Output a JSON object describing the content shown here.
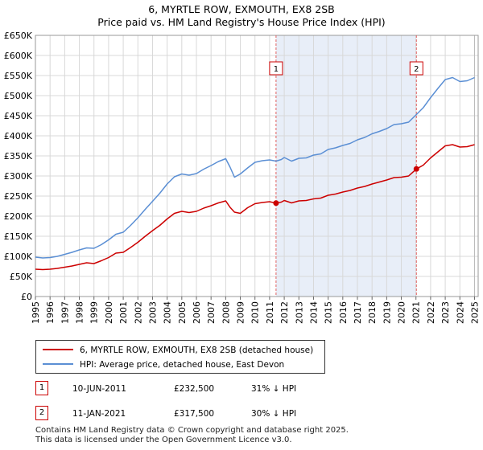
{
  "header": {
    "title": "6, MYRTLE ROW, EXMOUTH, EX8 2SB",
    "subtitle": "Price paid vs. HM Land Registry's House Price Index (HPI)"
  },
  "colors": {
    "property": "#cc0000",
    "hpi": "#5b8fd4",
    "shade": "#e8eef8",
    "marker_line": "#e06060"
  },
  "chart_data": {
    "type": "line",
    "title": "6, MYRTLE ROW, EXMOUTH, EX8 2SB",
    "subtitle": "Price paid vs. HM Land Registry's House Price Index (HPI)",
    "xlabel": "",
    "ylabel": "",
    "xlim": [
      1995,
      2025.25
    ],
    "ylim": [
      0,
      650000
    ],
    "x_ticks": [
      "1995",
      "1996",
      "1997",
      "1998",
      "1999",
      "2000",
      "2001",
      "2002",
      "2003",
      "2004",
      "2005",
      "2006",
      "2007",
      "2008",
      "2009",
      "2010",
      "2011",
      "2012",
      "2013",
      "2014",
      "2015",
      "2016",
      "2017",
      "2018",
      "2019",
      "2020",
      "2021",
      "2022",
      "2023",
      "2024",
      "2025"
    ],
    "y_ticks": [
      {
        "value": 0,
        "label": "£0"
      },
      {
        "value": 50000,
        "label": "£50K"
      },
      {
        "value": 100000,
        "label": "£100K"
      },
      {
        "value": 150000,
        "label": "£150K"
      },
      {
        "value": 200000,
        "label": "£200K"
      },
      {
        "value": 250000,
        "label": "£250K"
      },
      {
        "value": 300000,
        "label": "£300K"
      },
      {
        "value": 350000,
        "label": "£350K"
      },
      {
        "value": 400000,
        "label": "£400K"
      },
      {
        "value": 450000,
        "label": "£450K"
      },
      {
        "value": 500000,
        "label": "£500K"
      },
      {
        "value": 550000,
        "label": "£550K"
      },
      {
        "value": 600000,
        "label": "£600K"
      },
      {
        "value": 650000,
        "label": "£650K"
      }
    ],
    "grid": true,
    "shaded_period": [
      2011.44,
      2021.03
    ],
    "series": [
      {
        "name": "6, MYRTLE ROW, EXMOUTH, EX8 2SB (detached house)",
        "x": [
          1995,
          1995.5,
          1996,
          1996.5,
          1997,
          1997.5,
          1998,
          1998.5,
          1999,
          1999.5,
          2000,
          2000.5,
          2001,
          2001.5,
          2002,
          2002.5,
          2003,
          2003.5,
          2004,
          2004.5,
          2005,
          2005.5,
          2006,
          2006.5,
          2007,
          2007.5,
          2008,
          2008.3,
          2008.6,
          2009,
          2009.5,
          2010,
          2010.5,
          2011,
          2011.44,
          2011.8,
          2012,
          2012.5,
          2013,
          2013.5,
          2014,
          2014.5,
          2015,
          2015.5,
          2016,
          2016.5,
          2017,
          2017.5,
          2018,
          2018.5,
          2019,
          2019.5,
          2020,
          2020.5,
          2021.03,
          2021.5,
          2022,
          2022.5,
          2023,
          2023.5,
          2024,
          2024.5,
          2025
        ],
        "values": [
          68000,
          67000,
          68000,
          70000,
          73000,
          76000,
          80000,
          84000,
          82000,
          89000,
          97000,
          108000,
          110000,
          122000,
          135000,
          150000,
          164000,
          177000,
          193000,
          207000,
          212000,
          209000,
          212000,
          220000,
          226000,
          233000,
          238000,
          222000,
          210000,
          207000,
          221000,
          231000,
          234000,
          236000,
          232500,
          235000,
          239000,
          233000,
          238000,
          239000,
          243000,
          245000,
          252000,
          255000,
          260000,
          264000,
          270000,
          274000,
          280000,
          285000,
          290000,
          296000,
          297000,
          300000,
          317500,
          327000,
          345000,
          360000,
          375000,
          378000,
          372000,
          373000,
          378000
        ]
      },
      {
        "name": "HPI: Average price, detached house, East Devon",
        "x": [
          1995,
          1995.5,
          1996,
          1996.5,
          1997,
          1997.5,
          1998,
          1998.5,
          1999,
          1999.5,
          2000,
          2000.5,
          2001,
          2001.5,
          2002,
          2002.5,
          2003,
          2003.5,
          2004,
          2004.5,
          2005,
          2005.5,
          2006,
          2006.5,
          2007,
          2007.5,
          2008,
          2008.3,
          2008.6,
          2009,
          2009.5,
          2010,
          2010.5,
          2011,
          2011.44,
          2011.8,
          2012,
          2012.5,
          2013,
          2013.5,
          2014,
          2014.5,
          2015,
          2015.5,
          2016,
          2016.5,
          2017,
          2017.5,
          2018,
          2018.5,
          2019,
          2019.5,
          2020,
          2020.5,
          2021.03,
          2021.5,
          2022,
          2022.5,
          2023,
          2023.5,
          2024,
          2024.5,
          2025
        ],
        "values": [
          98000,
          96000,
          97000,
          100000,
          105000,
          110000,
          116000,
          121000,
          120000,
          129000,
          141000,
          155000,
          160000,
          177000,
          196000,
          217000,
          237000,
          257000,
          280000,
          298000,
          305000,
          302000,
          306000,
          317000,
          326000,
          336000,
          343000,
          322000,
          297000,
          305000,
          320000,
          334000,
          338000,
          340000,
          337000,
          341000,
          346000,
          337000,
          344000,
          345000,
          352000,
          355000,
          366000,
          370000,
          376000,
          381000,
          390000,
          396000,
          405000,
          411000,
          418000,
          428000,
          430000,
          434000,
          453000,
          470000,
          495000,
          518000,
          540000,
          545000,
          535000,
          537000,
          545000
        ]
      }
    ],
    "annotations": [
      {
        "label": "1",
        "x": 2011.44,
        "value": 232500
      },
      {
        "label": "2",
        "x": 2021.03,
        "value": 317500
      }
    ]
  },
  "legend": {
    "property": "6, MYRTLE ROW, EXMOUTH, EX8 2SB (detached house)",
    "hpi": "HPI: Average price, detached house, East Devon"
  },
  "transactions": [
    {
      "num": "1",
      "date": "10-JUN-2011",
      "price": "£232,500",
      "hpi": "31% ↓ HPI"
    },
    {
      "num": "2",
      "date": "11-JAN-2021",
      "price": "£317,500",
      "hpi": "30% ↓ HPI"
    }
  ],
  "footer": {
    "line1": "Contains HM Land Registry data © Crown copyright and database right 2025.",
    "line2": "This data is licensed under the Open Government Licence v3.0."
  }
}
